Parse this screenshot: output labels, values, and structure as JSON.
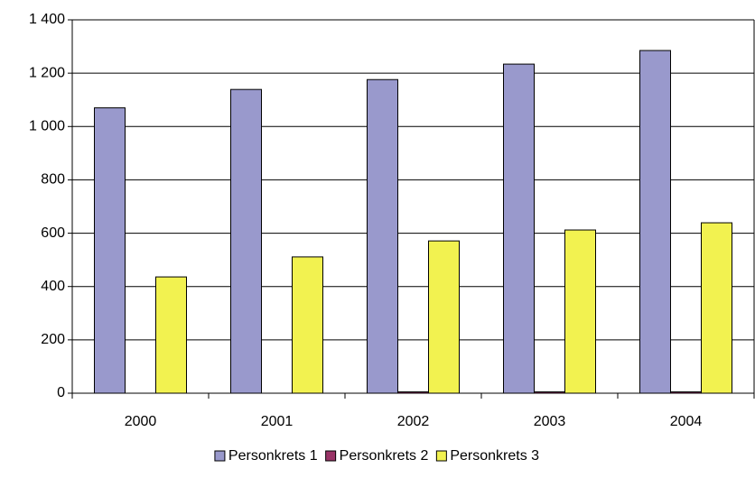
{
  "chart_data": {
    "type": "bar",
    "categories": [
      "2000",
      "2001",
      "2002",
      "2003",
      "2004"
    ],
    "series": [
      {
        "name": "Personkrets 1",
        "color": "#9999cc",
        "values": [
          1070,
          1139,
          1176,
          1234,
          1285
        ]
      },
      {
        "name": "Personkrets 2",
        "color": "#993366",
        "values": [
          0,
          0,
          5,
          5,
          5
        ]
      },
      {
        "name": "Personkrets 3",
        "color": "#f2f250",
        "values": [
          436,
          511,
          571,
          612,
          639
        ]
      }
    ],
    "ylim": [
      0,
      1400
    ],
    "yticks": [
      0,
      200,
      400,
      600,
      800,
      {
        "value": 1000,
        "label": "1 000"
      },
      {
        "value": 1200,
        "label": "1 200"
      },
      {
        "value": 1400,
        "label": "1 400"
      }
    ],
    "grid": true,
    "legend": "bottom"
  }
}
